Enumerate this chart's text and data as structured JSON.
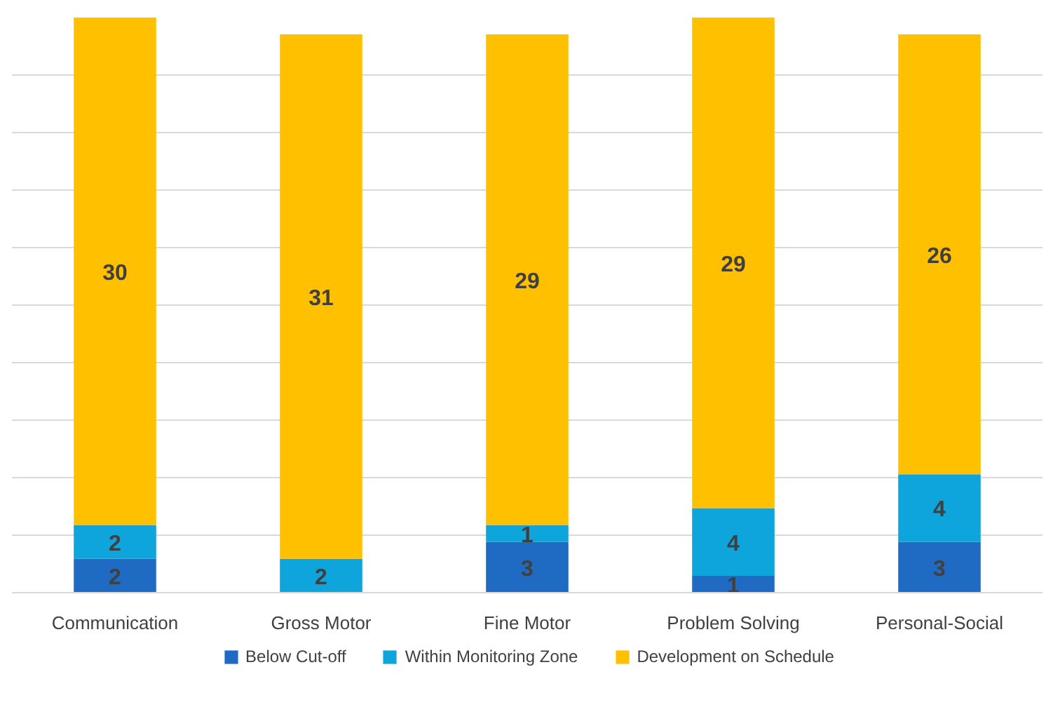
{
  "chart_data": {
    "type": "bar",
    "stacked": true,
    "categories": [
      "Communication",
      "Gross Motor",
      "Fine Motor",
      "Problem Solving",
      "Personal-Social"
    ],
    "series": [
      {
        "name": "Below Cut-off",
        "color": "#1f6bc4",
        "values": [
          2,
          0,
          3,
          1,
          3
        ],
        "value_labels": [
          "2",
          null,
          "3",
          "1",
          "3"
        ]
      },
      {
        "name": "Within Monitoring Zone",
        "color": "#0ea5dc",
        "values": [
          2,
          2,
          1,
          4,
          4
        ],
        "value_labels": [
          "2",
          "2",
          "1",
          "4",
          "4"
        ]
      },
      {
        "name": "Development on Schedule",
        "color": "#ffc000",
        "values": [
          30,
          31,
          29,
          29,
          26
        ],
        "value_labels": [
          "30",
          "31",
          "29",
          "29",
          "26"
        ]
      }
    ],
    "ylim": [
      0,
      34
    ],
    "yticks": [
      {
        "value": 0,
        "label": null
      },
      {
        "value": 3.4,
        "label": null
      },
      {
        "value": 6.8,
        "label": null
      },
      {
        "value": 10.2,
        "label": null
      },
      {
        "value": 13.6,
        "label": null
      },
      {
        "value": 17,
        "label": null
      },
      {
        "value": 20.4,
        "label": null
      },
      {
        "value": 23.8,
        "label": null
      },
      {
        "value": 27.2,
        "label": null
      },
      {
        "value": 30.6,
        "label": null
      }
    ],
    "tick_labels": "x",
    "grid": "y",
    "legend": "bottom"
  }
}
